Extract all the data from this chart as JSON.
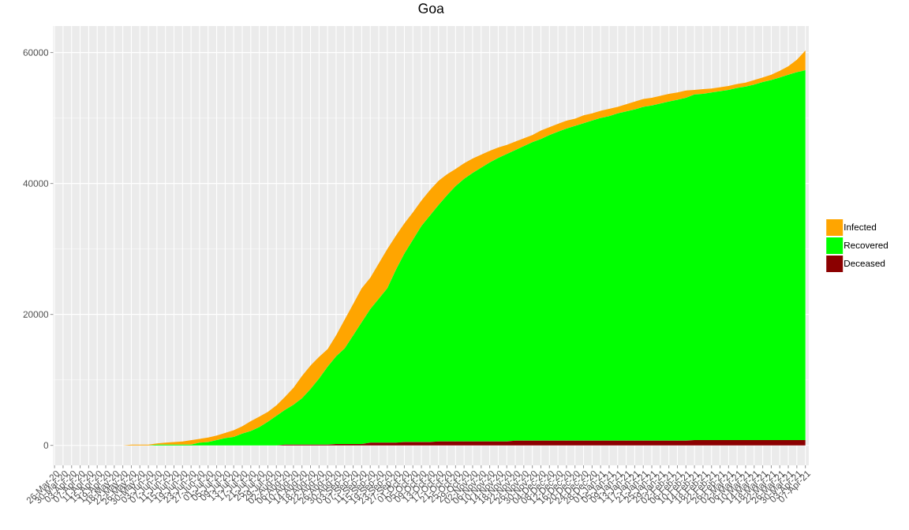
{
  "chart_data": {
    "type": "area",
    "title": "Goa",
    "stacked": true,
    "legend": "right",
    "grid": true,
    "categories": [
      "26-Mar-20",
      "30-Mar-20",
      "03-Apr-20",
      "07-Apr-20",
      "11-Apr-20",
      "15-Apr-20",
      "19-Apr-20",
      "18-May-20",
      "22-May-20",
      "26-May-20",
      "30-May-20",
      "03-Jun-20",
      "07-Jun-20",
      "11-Jun-20",
      "15-Jun-20",
      "19-Jun-20",
      "23-Jun-20",
      "27-Jun-20",
      "01-Jul-20",
      "05-Jul-20",
      "09-Jul-20",
      "13-Jul-20",
      "17-Jul-20",
      "21-Jul-20",
      "25-Jul-20",
      "29-Jul-20",
      "02-Aug-20",
      "06-Aug-20",
      "10-Aug-20",
      "14-Aug-20",
      "18-Aug-20",
      "22-Aug-20",
      "26-Aug-20",
      "30-Aug-20",
      "03-Sep-20",
      "07-Sep-20",
      "11-Sep-20",
      "15-Sep-20",
      "19-Sep-20",
      "23-Sep-20",
      "27-Sep-20",
      "01-Oct-20",
      "05-Oct-20",
      "09-Oct-20",
      "13-Oct-20",
      "17-Oct-20",
      "21-Oct-20",
      "25-Oct-20",
      "29-Oct-20",
      "02-Nov-20",
      "06-Nov-20",
      "10-Nov-20",
      "14-Nov-20",
      "18-Nov-20",
      "22-Nov-20",
      "26-Nov-20",
      "30-Nov-20",
      "04-Dec-20",
      "08-Dec-20",
      "12-Dec-20",
      "16-Dec-20",
      "20-Dec-20",
      "24-Dec-20",
      "28-Dec-20",
      "01-Jan-21",
      "05-Jan-21",
      "09-Jan-21",
      "13-Jan-21",
      "17-Jan-21",
      "21-Jan-21",
      "25-Jan-21",
      "29-Jan-21",
      "02-Feb-21",
      "06-Feb-21",
      "10-Feb-21",
      "14-Feb-21",
      "18-Feb-21",
      "22-Feb-21",
      "26-Feb-21",
      "02-Mar-21",
      "06-Mar-21",
      "10-Mar-21",
      "14-Mar-21",
      "18-Mar-21",
      "22-Mar-21",
      "26-Mar-21",
      "30-Mar-21",
      "03-Apr-21",
      "07-Apr-21"
    ],
    "series": [
      {
        "name": "Deceased",
        "color": "#8b0000",
        "values": [
          0,
          0,
          0,
          0,
          0,
          0,
          0,
          0,
          0,
          0,
          0,
          0,
          0,
          0,
          0,
          0,
          0,
          0,
          0,
          0,
          0,
          0,
          0,
          0,
          0,
          0,
          0,
          100,
          100,
          100,
          100,
          100,
          100,
          200,
          200,
          200,
          200,
          400,
          400,
          400,
          400,
          500,
          500,
          500,
          500,
          600,
          600,
          600,
          600,
          600,
          600,
          600,
          600,
          600,
          700,
          700,
          700,
          700,
          700,
          700,
          700,
          700,
          700,
          700,
          700,
          700,
          700,
          700,
          700,
          700,
          700,
          700,
          700,
          700,
          700,
          800,
          800,
          800,
          800,
          800,
          800,
          800,
          800,
          800,
          800,
          800,
          800,
          800,
          800
        ]
      },
      {
        "name": "Recovered",
        "color": "#00ff00",
        "values": [
          0,
          0,
          0,
          0,
          0,
          0,
          0,
          0,
          0,
          0,
          0,
          0,
          100,
          100,
          100,
          100,
          100,
          400,
          500,
          800,
          1100,
          1300,
          1800,
          2200,
          2800,
          3600,
          4500,
          5300,
          6100,
          7100,
          8500,
          10100,
          11900,
          13400,
          14600,
          16600,
          18600,
          20400,
          22000,
          23600,
          26400,
          28800,
          30900,
          33000,
          34600,
          36100,
          37600,
          39000,
          40100,
          41000,
          41800,
          42600,
          43300,
          43900,
          44400,
          45000,
          45600,
          46100,
          46700,
          47200,
          47700,
          48100,
          48500,
          48900,
          49300,
          49600,
          50000,
          50300,
          50600,
          51000,
          51200,
          51500,
          51800,
          52100,
          52400,
          52800,
          52900,
          53100,
          53300,
          53500,
          53800,
          54000,
          54300,
          54700,
          55000,
          55400,
          55800,
          56200,
          56500
        ]
      },
      {
        "name": "Infected",
        "color": "#ffa500",
        "values": [
          0,
          0,
          0,
          0,
          0,
          0,
          0,
          0,
          0,
          100,
          100,
          100,
          200,
          300,
          400,
          500,
          700,
          600,
          700,
          700,
          800,
          1000,
          1100,
          1500,
          1600,
          1500,
          1600,
          2000,
          2600,
          3400,
          3600,
          3300,
          2700,
          3200,
          4400,
          4800,
          5200,
          4800,
          5400,
          6000,
          5200,
          4600,
          4200,
          3900,
          3900,
          3700,
          3200,
          2600,
          2400,
          2200,
          2000,
          1800,
          1600,
          1400,
          1300,
          1200,
          1100,
          1300,
          1200,
          1200,
          1200,
          1100,
          1200,
          1100,
          1100,
          1100,
          1000,
          1100,
          1200,
          1200,
          1200,
          1200,
          1200,
          1100,
          1100,
          700,
          700,
          600,
          600,
          600,
          600,
          600,
          700,
          700,
          800,
          1000,
          1300,
          1900,
          3000
        ]
      }
    ],
    "ylim": [
      -3050,
      64050
    ],
    "yticks": [
      0,
      20000,
      40000,
      60000
    ]
  }
}
